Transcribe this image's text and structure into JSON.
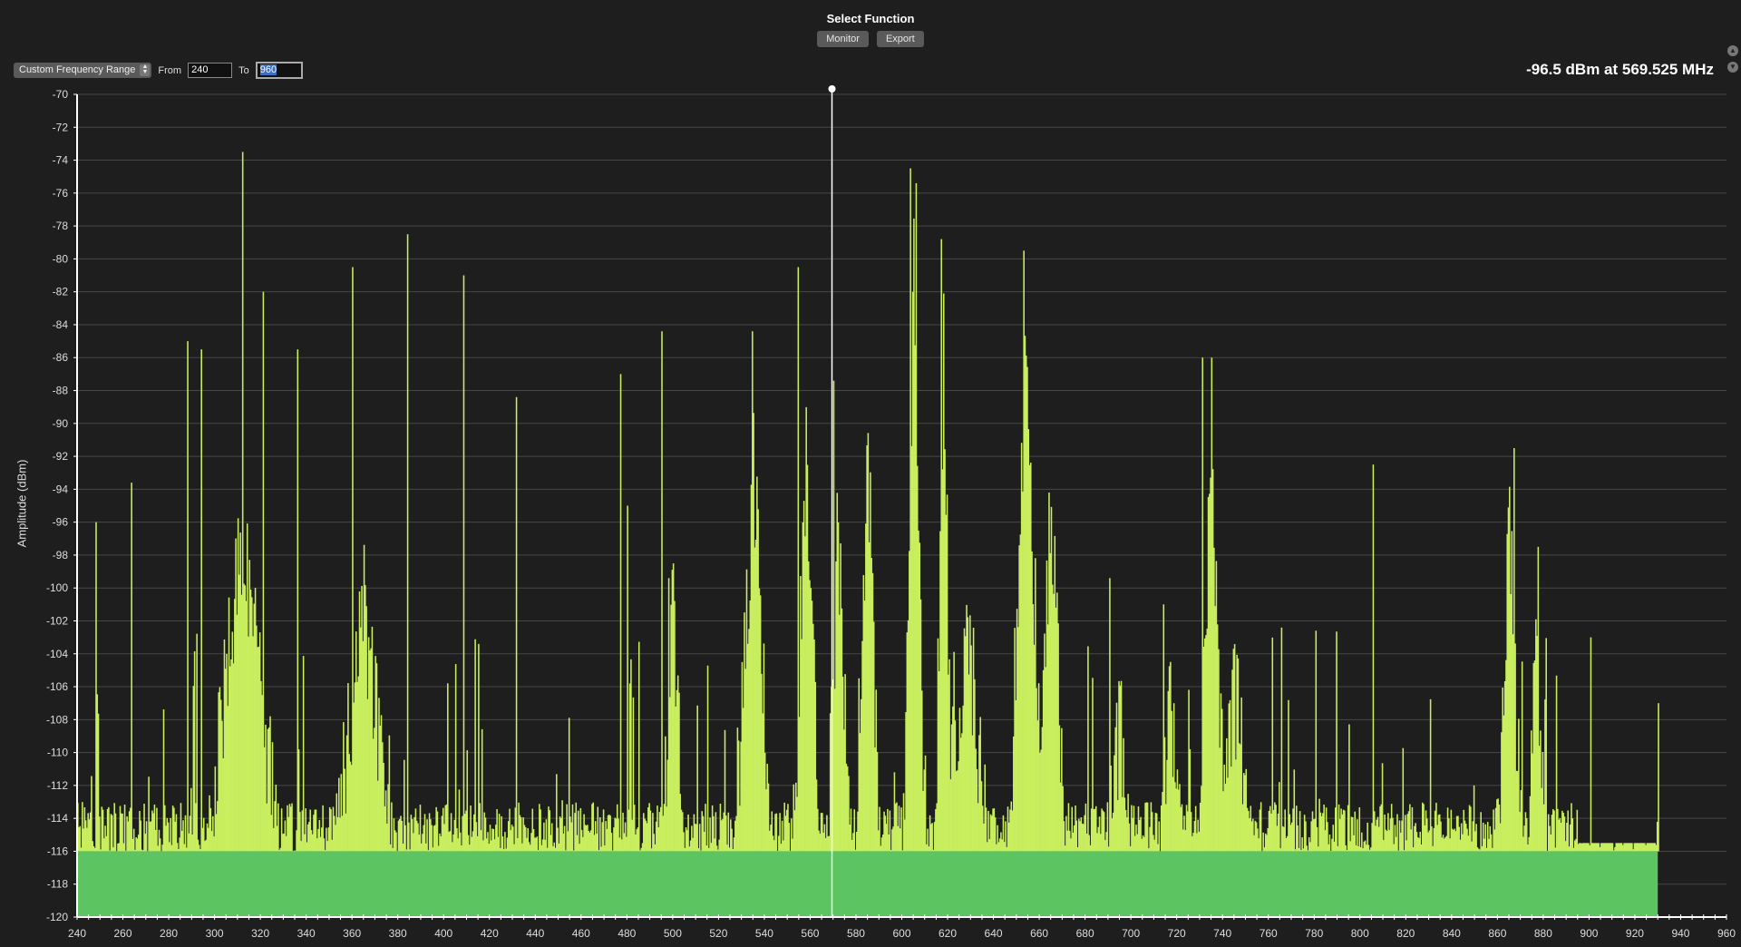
{
  "header": {
    "title": "Select Function",
    "buttons": [
      "Monitor",
      "Export"
    ]
  },
  "controls": {
    "range_select": "Custom Frequency Range",
    "from_label": "From",
    "from_value": "240",
    "to_label": "To",
    "to_value": "960"
  },
  "readout": "-96.5 dBm at 569.525 MHz",
  "scroll_icons": [
    "scroll-up-icon",
    "scroll-down-icon"
  ],
  "chart_data": {
    "type": "bar",
    "title": "",
    "xlabel": "",
    "ylabel": "Amplitude (dBm)",
    "xlim": [
      240,
      960
    ],
    "ylim": [
      -120,
      -70
    ],
    "xticks": [
      240,
      260,
      280,
      300,
      320,
      340,
      360,
      380,
      400,
      420,
      440,
      460,
      480,
      500,
      520,
      540,
      560,
      580,
      600,
      620,
      640,
      660,
      680,
      700,
      720,
      740,
      760,
      780,
      800,
      820,
      840,
      860,
      880,
      900,
      920,
      940,
      960
    ],
    "yticks": [
      -70,
      -72,
      -74,
      -76,
      -78,
      -80,
      -82,
      -84,
      -86,
      -88,
      -90,
      -92,
      -94,
      -96,
      -98,
      -100,
      -102,
      -104,
      -106,
      -108,
      -110,
      -112,
      -114,
      -116,
      -118,
      -120
    ],
    "grid": true,
    "noise_floor_dbm": -116,
    "data_extent_mhz": [
      240,
      930
    ],
    "cursor": {
      "freq_mhz": 569.525,
      "dbm": -96.5
    },
    "peaks": [
      [
        248,
        -96
      ],
      [
        263.7,
        -93.6
      ],
      [
        288,
        -85
      ],
      [
        293.8,
        -85.5
      ],
      [
        312.2,
        -73.5
      ],
      [
        321,
        -82
      ],
      [
        336,
        -85.5
      ],
      [
        360,
        -80.5
      ],
      [
        383.9,
        -78.5
      ],
      [
        408.6,
        -81
      ],
      [
        431.4,
        -88.4
      ],
      [
        477,
        -87
      ],
      [
        480,
        -95
      ],
      [
        494.8,
        -84.4
      ],
      [
        498,
        -99.4
      ],
      [
        534.6,
        -84.4
      ],
      [
        554.4,
        -80.5
      ],
      [
        570,
        -87.4
      ],
      [
        603.4,
        -74.5
      ],
      [
        606,
        -75.4
      ],
      [
        617,
        -78.8
      ],
      [
        652.8,
        -79.5
      ],
      [
        690.6,
        -99.4
      ],
      [
        714,
        -101
      ],
      [
        730.8,
        -86
      ],
      [
        735,
        -86
      ],
      [
        805.4,
        -92.5
      ],
      [
        867,
        -91.5
      ],
      [
        877.7,
        -97.5
      ],
      [
        900.4,
        -103
      ],
      [
        930,
        -107
      ]
    ],
    "clusters": [
      [
        312,
        18,
        -93
      ],
      [
        365,
        14,
        -97
      ],
      [
        500,
        5,
        -96
      ],
      [
        535,
        8,
        -88
      ],
      [
        558,
        6,
        -87
      ],
      [
        572,
        5,
        -92
      ],
      [
        585,
        5,
        -87
      ],
      [
        605,
        5,
        -76
      ],
      [
        618,
        4,
        -82
      ],
      [
        628,
        12,
        -99
      ],
      [
        654,
        8,
        -82
      ],
      [
        665,
        6,
        -90
      ],
      [
        695,
        6,
        -104
      ],
      [
        717,
        5,
        -103
      ],
      [
        735,
        6,
        -87
      ],
      [
        745,
        8,
        -102
      ],
      [
        865,
        6,
        -93
      ],
      [
        877,
        4,
        -98
      ]
    ],
    "colors": {
      "spectrum": "#c9ef5f",
      "floor": "#5cc561",
      "background": "#1e1e1e",
      "grid": "#474747",
      "cursor": "#ffffff"
    }
  }
}
